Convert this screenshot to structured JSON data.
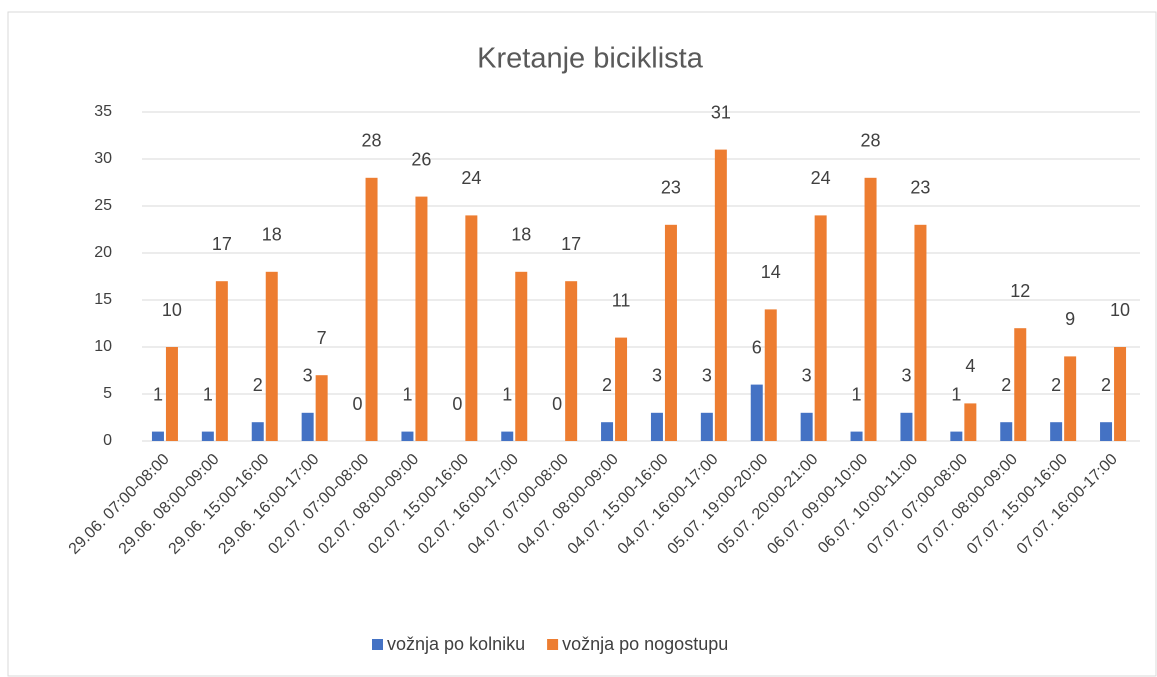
{
  "chart_data": {
    "type": "bar",
    "title": "Kretanje biciklista",
    "categories": [
      "29.06. 07:00-08:00",
      "29.06. 08:00-09:00",
      "29.06. 15:00-16:00",
      "29.06. 16:00-17:00",
      "02.07. 07:00-08:00",
      "02.07. 08:00-09:00",
      "02.07. 15:00-16:00",
      "02.07. 16:00-17:00",
      "04.07. 07:00-08:00",
      "04.07. 08:00-09:00",
      "04.07. 15:00-16:00",
      "04.07. 16:00-17:00",
      "05.07. 19:00-20:00",
      "05.07. 20:00-21:00",
      "06.07. 09:00-10:00",
      "06.07. 10:00-11:00",
      "07.07. 07:00-08:00",
      "07.07. 08:00-09:00",
      "07.07. 15:00-16:00",
      "07.07. 16:00-17:00"
    ],
    "series": [
      {
        "name": "vožnja po kolniku",
        "color": "#4472c4",
        "values": [
          1,
          1,
          2,
          3,
          0,
          1,
          0,
          1,
          0,
          2,
          3,
          3,
          6,
          3,
          1,
          3,
          1,
          2,
          2,
          2
        ]
      },
      {
        "name": "vožnja po nogostupu",
        "color": "#ed7d31",
        "values": [
          10,
          17,
          18,
          7,
          28,
          26,
          24,
          18,
          17,
          11,
          23,
          31,
          14,
          24,
          28,
          23,
          4,
          12,
          9,
          10
        ]
      }
    ],
    "ylim": [
      0,
      35
    ],
    "yticks": [
      0,
      5,
      10,
      15,
      20,
      25,
      30,
      35
    ],
    "grid": true,
    "legend": "bottom"
  }
}
